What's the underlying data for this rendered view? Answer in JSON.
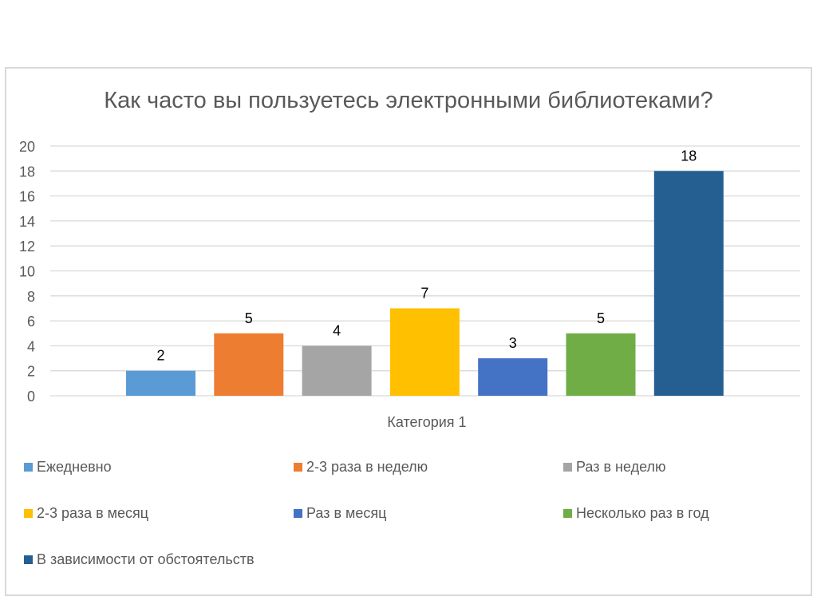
{
  "chart_data": {
    "type": "bar",
    "title": "Как часто вы пользуетесь электронными библиотеками?",
    "xlabel": "Категория 1",
    "ylabel": "",
    "categories": [
      "Категория 1"
    ],
    "ylim": [
      0,
      20
    ],
    "yticks": [
      0,
      2,
      4,
      6,
      8,
      10,
      12,
      14,
      16,
      18,
      20
    ],
    "grid": true,
    "legend_position": "bottom",
    "series": [
      {
        "name": "Ежедневно",
        "values": [
          2
        ],
        "color": "#5b9bd5"
      },
      {
        "name": "2-3 раза в неделю",
        "values": [
          5
        ],
        "color": "#ed7d31"
      },
      {
        "name": "Раз в неделю",
        "values": [
          4
        ],
        "color": "#a5a5a5"
      },
      {
        "name": "2-3 раза в месяц",
        "values": [
          7
        ],
        "color": "#ffc000"
      },
      {
        "name": "Раз в месяц",
        "values": [
          3
        ],
        "color": "#4472c4"
      },
      {
        "name": "Несколько раз в год",
        "values": [
          5
        ],
        "color": "#70ad47"
      },
      {
        "name": "В зависимости от обстоятельств",
        "values": [
          18
        ],
        "color": "#255e91"
      }
    ]
  }
}
